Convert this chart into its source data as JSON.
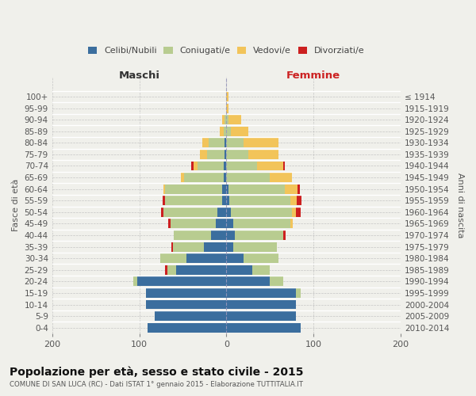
{
  "age_groups": [
    "0-4",
    "5-9",
    "10-14",
    "15-19",
    "20-24",
    "25-29",
    "30-34",
    "35-39",
    "40-44",
    "45-49",
    "50-54",
    "55-59",
    "60-64",
    "65-69",
    "70-74",
    "75-79",
    "80-84",
    "85-89",
    "90-94",
    "95-99",
    "100+"
  ],
  "birth_years": [
    "2010-2014",
    "2005-2009",
    "2000-2004",
    "1995-1999",
    "1990-1994",
    "1985-1989",
    "1980-1984",
    "1975-1979",
    "1970-1974",
    "1965-1969",
    "1960-1964",
    "1955-1959",
    "1950-1954",
    "1945-1949",
    "1940-1944",
    "1935-1939",
    "1930-1934",
    "1925-1929",
    "1920-1924",
    "1915-1919",
    "≤ 1914"
  ],
  "colors": {
    "celibi": "#3b6e9e",
    "coniugati": "#b8cc90",
    "vedovi": "#f2c45a",
    "divorziati": "#cc2020"
  },
  "maschi": {
    "celibi": [
      90,
      82,
      92,
      92,
      102,
      58,
      46,
      26,
      18,
      12,
      10,
      5,
      5,
      3,
      3,
      2,
      2,
      0,
      0,
      0,
      0
    ],
    "coniugati": [
      0,
      0,
      0,
      0,
      5,
      10,
      30,
      35,
      42,
      52,
      62,
      65,
      65,
      46,
      30,
      20,
      18,
      3,
      2,
      0,
      0
    ],
    "vedovi": [
      0,
      0,
      0,
      0,
      0,
      0,
      0,
      0,
      0,
      0,
      0,
      0,
      2,
      3,
      5,
      8,
      8,
      5,
      3,
      0,
      0
    ],
    "divorziati": [
      0,
      0,
      0,
      0,
      0,
      2,
      0,
      2,
      0,
      3,
      3,
      3,
      0,
      0,
      2,
      0,
      0,
      0,
      0,
      0,
      0
    ]
  },
  "femmine": {
    "celibi": [
      85,
      80,
      80,
      80,
      50,
      30,
      20,
      8,
      10,
      8,
      5,
      3,
      2,
      0,
      0,
      0,
      0,
      0,
      0,
      0,
      0
    ],
    "coniugati": [
      0,
      0,
      0,
      5,
      15,
      20,
      40,
      50,
      55,
      65,
      70,
      70,
      65,
      50,
      35,
      25,
      20,
      5,
      2,
      0,
      0
    ],
    "vedovi": [
      0,
      0,
      0,
      0,
      0,
      0,
      0,
      0,
      0,
      3,
      5,
      8,
      15,
      25,
      30,
      35,
      40,
      20,
      15,
      2,
      2
    ],
    "divorziati": [
      0,
      0,
      0,
      0,
      0,
      0,
      0,
      0,
      3,
      0,
      5,
      5,
      2,
      0,
      2,
      0,
      0,
      0,
      0,
      0,
      0
    ]
  },
  "title": "Popolazione per età, sesso e stato civile - 2015",
  "subtitle": "COMUNE DI SAN LUCA (RC) - Dati ISTAT 1° gennaio 2015 - Elaborazione TUTTITALIA.IT",
  "xlabel_left": "Maschi",
  "xlabel_right": "Femmine",
  "ylabel_left": "Fasce di età",
  "ylabel_right": "Anni di nascita",
  "xlim": 200,
  "legend_labels": [
    "Celibi/Nubili",
    "Coniugati/e",
    "Vedovi/e",
    "Divorziati/e"
  ],
  "background_color": "#f0f0eb"
}
